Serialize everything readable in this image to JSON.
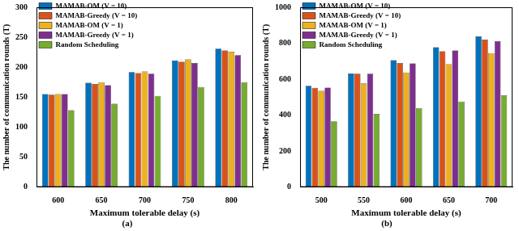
{
  "chart_data": [
    {
      "type": "bar",
      "title": "(a)",
      "x_label": "Maximum tolerable delay (s)",
      "y_label": "The number of communication rounds (T)",
      "categories": [
        "600",
        "650",
        "700",
        "750",
        "800"
      ],
      "series": [
        {
          "name": "MAMAB-OM (V = 10)",
          "color": "#0072BD",
          "values": [
            155,
            174,
            192,
            211,
            231
          ]
        },
        {
          "name": "MAMAB-Greedy (V = 10)",
          "color": "#D95319",
          "values": [
            154,
            172,
            190,
            209,
            228
          ]
        },
        {
          "name": "MAMAB-OM (V = 1)",
          "color": "#EDB120",
          "values": [
            155,
            175,
            193,
            213,
            226
          ]
        },
        {
          "name": "MAMAB-Greedy (V = 1)",
          "color": "#7E2F8E",
          "values": [
            155,
            170,
            189,
            207,
            220
          ]
        },
        {
          "name": "Random Scheduling",
          "color": "#77AC30",
          "values": [
            128,
            139,
            152,
            167,
            175
          ]
        }
      ],
      "ylim": [
        0,
        300
      ],
      "yticks": [
        0,
        50,
        100,
        150,
        200,
        250,
        300
      ],
      "grid": false,
      "legend": "top-left"
    },
    {
      "type": "bar",
      "title": "(b)",
      "x_label": "Maximum tolerable delay (s)",
      "y_label": "The number of communication rounds (T)",
      "categories": [
        "500",
        "550",
        "600",
        "650",
        "700"
      ],
      "series": [
        {
          "name": "MAMAB-OM (V = 10)",
          "color": "#0072BD",
          "values": [
            563,
            632,
            706,
            778,
            838
          ]
        },
        {
          "name": "MAMAB-Greedy (V = 10)",
          "color": "#D95319",
          "values": [
            552,
            631,
            690,
            755,
            820
          ]
        },
        {
          "name": "MAMAB-OM (V = 1)",
          "color": "#EDB120",
          "values": [
            535,
            577,
            637,
            683,
            745
          ]
        },
        {
          "name": "MAMAB-Greedy (V = 1)",
          "color": "#7E2F8E",
          "values": [
            553,
            630,
            688,
            760,
            812
          ]
        },
        {
          "name": "Random Scheduling",
          "color": "#77AC30",
          "values": [
            365,
            407,
            440,
            475,
            510
          ]
        }
      ],
      "ylim": [
        0,
        1000
      ],
      "yticks": [
        0,
        200,
        400,
        600,
        800,
        1000
      ],
      "grid": false,
      "legend": "top-left"
    }
  ]
}
